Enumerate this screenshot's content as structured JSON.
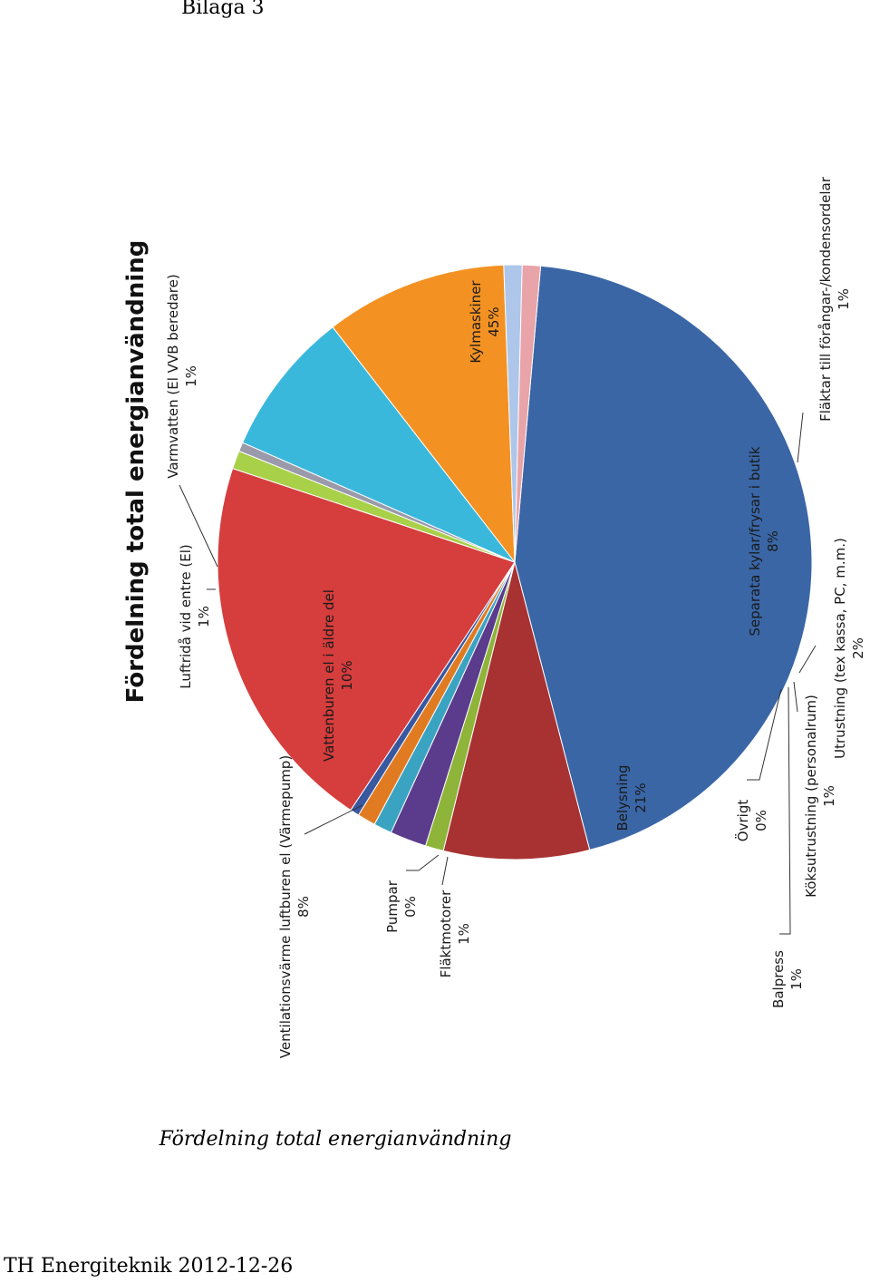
{
  "document": {
    "header_label": "Bilaga 3",
    "caption": "Fördelning total energianvändning",
    "footer": "TH Energiteknik 2012-12-26"
  },
  "chart_data": {
    "type": "pie",
    "title": "Fördelning total energianvändning",
    "orientation": "rotated 90° clockwise",
    "series": [
      {
        "label": "Kylmaskiner",
        "pct_text": "45%",
        "value": 45,
        "color": "#3a66a6"
      },
      {
        "label": "Separata kylar/frysar i butik",
        "pct_text": "8%",
        "value": 8,
        "color": "#a83232"
      },
      {
        "label": "Fläktar till förångar-/kondensordelar",
        "pct_text": "1%",
        "value": 1,
        "color": "#8fb43a"
      },
      {
        "label": "Utrustning (tex kassa, PC, m.m.)",
        "pct_text": "2%",
        "value": 2,
        "color": "#5b3b8c"
      },
      {
        "label": "Köksutrustning (personalrum)",
        "pct_text": "1%",
        "value": 1,
        "color": "#3aa3c2"
      },
      {
        "label": "Balpress",
        "pct_text": "1%",
        "value": 1,
        "color": "#e07b22"
      },
      {
        "label": "Övrigt",
        "pct_text": "0%",
        "value": 0.5,
        "color": "#3858a0"
      },
      {
        "label": "Belysning",
        "pct_text": "21%",
        "value": 21,
        "color": "#d63d3d"
      },
      {
        "label": "Fläktmotorer",
        "pct_text": "1%",
        "value": 1,
        "color": "#a8d048"
      },
      {
        "label": "Pumpar",
        "pct_text": "0%",
        "value": 0.5,
        "color": "#9a9aaa"
      },
      {
        "label": "Ventilationsvärme luftburen el (Värmepump)",
        "pct_text": "8%",
        "value": 8,
        "color": "#3ab8dc"
      },
      {
        "label": "Vattenburen el i äldre del",
        "pct_text": "10%",
        "value": 10,
        "color": "#f39223"
      },
      {
        "label": "Luftridå vid entre (El)",
        "pct_text": "1%",
        "value": 1,
        "color": "#adc6ea"
      },
      {
        "label": "Varmvatten (El VVB beredare)",
        "pct_text": "1%",
        "value": 1,
        "color": "#e8a4a8"
      }
    ]
  }
}
